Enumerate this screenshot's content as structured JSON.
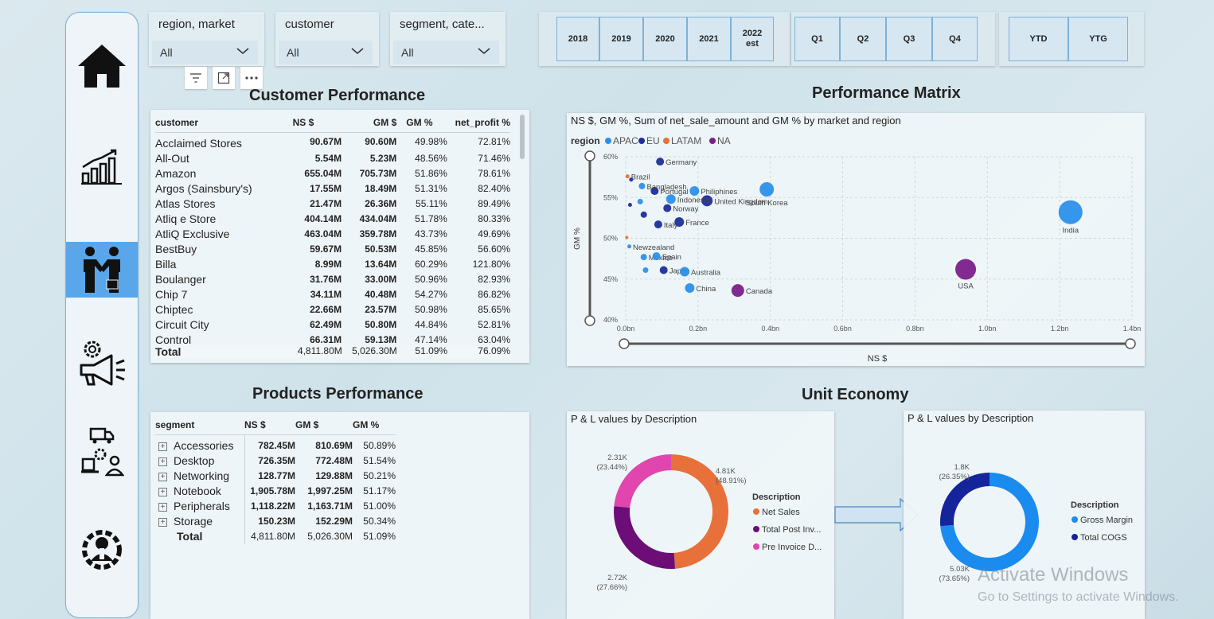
{
  "slicers": [
    {
      "title": "region, market",
      "value": "All"
    },
    {
      "title": "customer",
      "value": "All"
    },
    {
      "title": "segment, cate...",
      "value": "All"
    }
  ],
  "years": [
    "2018",
    "2019",
    "2020",
    "2021",
    "2022\nest"
  ],
  "quarters": [
    "Q1",
    "Q2",
    "Q3",
    "Q4"
  ],
  "ytd": [
    "YTD",
    "YTG"
  ],
  "nav_icons": [
    "home-icon",
    "chart-icon",
    "handshake-icon",
    "marketing-icon",
    "supply-chain-icon",
    "executive-icon"
  ],
  "customer_performance": {
    "title": "Customer Performance",
    "headers": [
      "customer",
      "NS $",
      "GM $",
      "GM %",
      "net_profit %"
    ],
    "rows": [
      [
        "Acclaimed Stores",
        "90.67M",
        "90.60M",
        "49.98%",
        "72.81%"
      ],
      [
        "All-Out",
        "5.54M",
        "5.23M",
        "48.56%",
        "71.46%"
      ],
      [
        "Amazon",
        "655.04M",
        "705.73M",
        "51.86%",
        "78.61%"
      ],
      [
        "Argos (Sainsbury's)",
        "17.55M",
        "18.49M",
        "51.31%",
        "82.40%"
      ],
      [
        "Atlas Stores",
        "21.47M",
        "26.36M",
        "55.11%",
        "89.49%"
      ],
      [
        "Atliq e Store",
        "404.14M",
        "434.04M",
        "51.78%",
        "80.33%"
      ],
      [
        "AtliQ Exclusive",
        "463.04M",
        "359.78M",
        "43.73%",
        "49.69%"
      ],
      [
        "BestBuy",
        "59.67M",
        "50.53M",
        "45.85%",
        "56.60%"
      ],
      [
        "Billa",
        "8.99M",
        "13.64M",
        "60.29%",
        "121.80%"
      ],
      [
        "Boulanger",
        "31.76M",
        "33.00M",
        "50.96%",
        "82.93%"
      ],
      [
        "Chip 7",
        "34.11M",
        "40.48M",
        "54.27%",
        "86.82%"
      ],
      [
        "Chiptec",
        "22.66M",
        "23.57M",
        "50.98%",
        "85.65%"
      ],
      [
        "Circuit City",
        "62.49M",
        "50.80M",
        "44.84%",
        "52.81%"
      ],
      [
        "Control",
        "66.31M",
        "59.13M",
        "47.14%",
        "63.04%"
      ]
    ],
    "total": [
      "Total",
      "4,811.80M",
      "5,026.30M",
      "51.09%",
      "76.09%"
    ]
  },
  "products_performance": {
    "title": "Products Performance",
    "headers": [
      "segment",
      "NS $",
      "GM $",
      "GM %"
    ],
    "rows": [
      [
        "Accessories",
        "782.45M",
        "810.69M",
        "50.89%"
      ],
      [
        "Desktop",
        "726.35M",
        "772.48M",
        "51.54%"
      ],
      [
        "Networking",
        "128.77M",
        "129.88M",
        "50.21%"
      ],
      [
        "Notebook",
        "1,905.78M",
        "1,997.25M",
        "51.17%"
      ],
      [
        "Peripherals",
        "1,118.22M",
        "1,163.71M",
        "51.00%"
      ],
      [
        "Storage",
        "150.23M",
        "152.29M",
        "50.34%"
      ]
    ],
    "total": [
      "Total",
      "4,811.80M",
      "5,026.30M",
      "51.09%"
    ]
  },
  "performance_matrix": {
    "section_title": "Performance Matrix",
    "subtitle": "NS $, GM %, Sum of net_sale_amount and GM % by market and region",
    "legend_title": "region",
    "xlabel": "NS $",
    "ylabel": "GM %"
  },
  "unit_economy": {
    "section_title": "Unit Economy",
    "left_title": "P & L values by Description",
    "right_title": "P & L values by Description",
    "legend_title": "Description"
  },
  "chart_data": [
    {
      "type": "scatter",
      "title": "NS $, GM %, Sum of net_sale_amount and GM % by market and region",
      "xlabel": "NS $",
      "ylabel": "GM %",
      "xlim": [
        0,
        1.4
      ],
      "ylim": [
        40,
        60
      ],
      "x_ticks": [
        "0.0bn",
        "0.2bn",
        "0.4bn",
        "0.6bn",
        "0.8bn",
        "1.0bn",
        "1.2bn",
        "1.4bn"
      ],
      "y_ticks": [
        "40%",
        "45%",
        "50%",
        "55%",
        "60%"
      ],
      "legend_placement": "top-left",
      "series": [
        {
          "name": "APAC",
          "color": "#2b90ea"
        },
        {
          "name": "EU",
          "color": "#1f2d9c"
        },
        {
          "name": "LATAM",
          "color": "#e8703a"
        },
        {
          "name": "NA",
          "color": "#7a1f8a"
        }
      ],
      "points": [
        {
          "label": "India",
          "region": "APAC",
          "x": 1.23,
          "y": 53.2,
          "size": 15
        },
        {
          "label": "USA",
          "region": "NA",
          "x": 0.94,
          "y": 46.2,
          "size": 13
        },
        {
          "label": "South Korea",
          "region": "APAC",
          "x": 0.39,
          "y": 56.0,
          "size": 9
        },
        {
          "label": "Canada",
          "region": "NA",
          "x": 0.31,
          "y": 43.6,
          "size": 8
        },
        {
          "label": "Germany",
          "region": "EU",
          "x": 0.095,
          "y": 59.4,
          "size": 5
        },
        {
          "label": "Philiphines",
          "region": "APAC",
          "x": 0.19,
          "y": 55.8,
          "size": 6
        },
        {
          "label": "United Kingdom",
          "region": "EU",
          "x": 0.225,
          "y": 54.6,
          "size": 7
        },
        {
          "label": "Indonesia",
          "region": "APAC",
          "x": 0.125,
          "y": 54.8,
          "size": 6
        },
        {
          "label": "Portugal",
          "region": "EU",
          "x": 0.08,
          "y": 55.8,
          "size": 5
        },
        {
          "label": "Brazil",
          "region": "LATAM",
          "x": 0.005,
          "y": 57.6,
          "size": 2.5
        },
        {
          "label": "",
          "region": "EU",
          "x": 0.015,
          "y": 57.2,
          "size": 2.5
        },
        {
          "label": "Bangladesh",
          "region": "APAC",
          "x": 0.045,
          "y": 56.4,
          "size": 4
        },
        {
          "label": "",
          "region": "APAC",
          "x": 0.04,
          "y": 54.5,
          "size": 3.5
        },
        {
          "label": "",
          "region": "EU",
          "x": 0.012,
          "y": 54.1,
          "size": 2.5
        },
        {
          "label": "Norway",
          "region": "EU",
          "x": 0.115,
          "y": 53.7,
          "size": 5
        },
        {
          "label": "",
          "region": "EU",
          "x": 0.05,
          "y": 52.9,
          "size": 4
        },
        {
          "label": "Italy",
          "region": "EU",
          "x": 0.09,
          "y": 51.7,
          "size": 5
        },
        {
          "label": "France",
          "region": "EU",
          "x": 0.148,
          "y": 52.0,
          "size": 6
        },
        {
          "label": "",
          "region": "LATAM",
          "x": 0.003,
          "y": 50.1,
          "size": 2
        },
        {
          "label": "Newzealand",
          "region": "APAC",
          "x": 0.01,
          "y": 49.0,
          "size": 2.5
        },
        {
          "label": "Mexico",
          "region": "APAC",
          "x": 0.05,
          "y": 47.7,
          "size": 4
        },
        {
          "label": "Spain",
          "region": "APAC",
          "x": 0.085,
          "y": 47.8,
          "size": 5
        },
        {
          "label": "",
          "region": "APAC",
          "x": 0.055,
          "y": 46.1,
          "size": 3.5
        },
        {
          "label": "Japan",
          "region": "EU",
          "x": 0.105,
          "y": 46.1,
          "size": 5
        },
        {
          "label": "Australia",
          "region": "APAC",
          "x": 0.163,
          "y": 45.9,
          "size": 6
        },
        {
          "label": "China",
          "region": "APAC",
          "x": 0.177,
          "y": 43.9,
          "size": 6
        }
      ]
    },
    {
      "type": "pie",
      "title": "P & L values by Description",
      "legend_title": "Description",
      "legend_placement": "right",
      "slices": [
        {
          "name": "Net Sales",
          "value": 4.81,
          "label": "4.81K",
          "percent": "(48.91%)",
          "color": "#e8703a"
        },
        {
          "name": "Total Post Inv...",
          "value": 2.72,
          "label": "2.72K",
          "percent": "(27.66%)",
          "color": "#6c0d78"
        },
        {
          "name": "Pre Invoice D...",
          "value": 2.31,
          "label": "2.31K",
          "percent": "(23.44%)",
          "color": "#e046ad"
        }
      ]
    },
    {
      "type": "pie",
      "title": "P & L values by Description",
      "legend_title": "Description",
      "legend_placement": "right",
      "slices": [
        {
          "name": "Gross Margin",
          "value": 5.03,
          "label": "5.03K",
          "percent": "(73.65%)",
          "color": "#1a8cf0"
        },
        {
          "name": "Total COGS",
          "value": 1.8,
          "label": "1.8K",
          "percent": "(26.35%)",
          "color": "#14249a"
        }
      ]
    }
  ],
  "watermark": {
    "line1": "Activate Windows",
    "line2": "Go to Settings to activate Windows."
  }
}
